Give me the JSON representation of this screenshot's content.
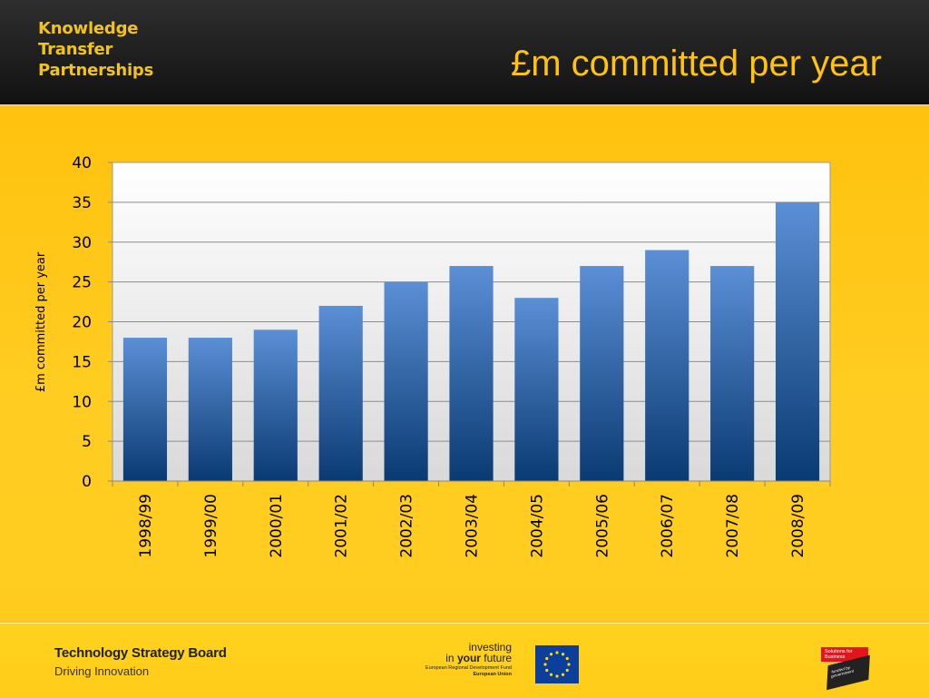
{
  "header": {
    "logo_lines": [
      "Knowledge",
      "Transfer",
      "Partnerships"
    ],
    "title": "£m committed per year"
  },
  "chart_data": {
    "type": "bar",
    "title": "",
    "xlabel": "",
    "ylabel": "£m committed per year",
    "ylim": [
      0,
      40
    ],
    "yticks": [
      0,
      5,
      10,
      15,
      20,
      25,
      30,
      35,
      40
    ],
    "categories": [
      "1998/99",
      "1999/00",
      "2000/01",
      "2001/02",
      "2002/03",
      "2003/04",
      "2004/05",
      "2005/06",
      "2006/07",
      "2007/08",
      "2008/09"
    ],
    "values": [
      18,
      18,
      19,
      22,
      25,
      27,
      23,
      27,
      29,
      27,
      35
    ],
    "grid": true,
    "legend": "none"
  },
  "footer": {
    "tsb_name": "Technology Strategy Board",
    "tsb_tagline": "Driving Innovation",
    "eu_line1": "investing",
    "eu_line2_pre": "in ",
    "eu_line2_bold": "your",
    "eu_line2_post": " future",
    "eu_line3": "European Regional Development Fund",
    "eu_line4": "European Union",
    "sfb_label": "Solutions for Business",
    "sfb_tab": "funded by government"
  },
  "colors": {
    "header_bg": "#1f1f1f",
    "title": "#ffc20e",
    "logo": "#f2c319",
    "background": "#ffc20e",
    "bar_top": "#5b8fd6",
    "bar_bottom": "#0a3a72",
    "eu_blue": "#0c3e9c",
    "sfb_red": "#e5141c"
  }
}
